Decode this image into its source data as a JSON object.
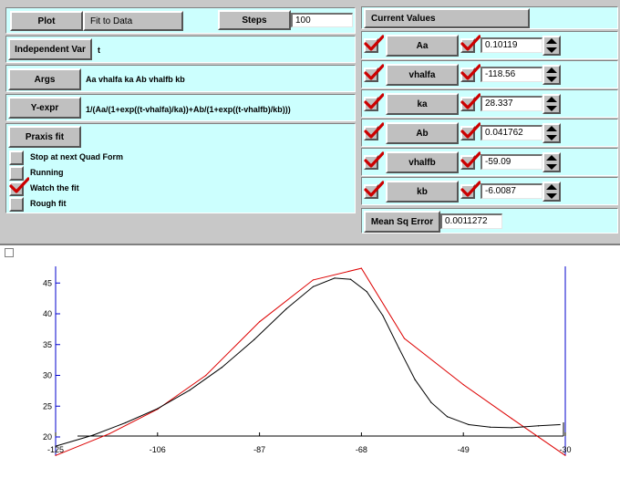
{
  "left_panel": {
    "plot_label": "Plot",
    "fit_to_data_label": "Fit to Data",
    "steps_label": "Steps",
    "steps_value": "100",
    "indep_var_label": "Independent Var",
    "indep_var_value": "t",
    "args_label": "Args",
    "args_value": "Aa vhalfa ka Ab vhalfb kb",
    "yexpr_label": "Y-expr",
    "yexpr_value": "1/(Aa/(1+exp((t-vhalfa)/ka))+Ab/(1+exp((t-vhalfb)/kb)))",
    "praxis_label": "Praxis fit",
    "options": [
      {
        "label": "Stop at next Quad Form",
        "checked": false
      },
      {
        "label": "Running",
        "checked": false
      },
      {
        "label": "Watch the fit",
        "checked": true
      },
      {
        "label": "Rough fit",
        "checked": false
      }
    ]
  },
  "right_panel": {
    "current_values_label": "Current Values",
    "params": [
      {
        "name": "Aa",
        "value": "0.10119"
      },
      {
        "name": "vhalfa",
        "value": "-118.56"
      },
      {
        "name": "ka",
        "value": "28.337"
      },
      {
        "name": "Ab",
        "value": "0.041762"
      },
      {
        "name": "vhalfb",
        "value": "-59.09"
      },
      {
        "name": "kb",
        "value": "-6.0087"
      }
    ],
    "mse_label": "Mean Sq Error",
    "mse_value": "0.0011272"
  },
  "colors": {
    "fit_curve": "#000000",
    "data_curve": "#dd0000",
    "axis": "#0000cc",
    "check": "#cc0000"
  },
  "chart_data": {
    "type": "line",
    "title": "",
    "xlabel": "",
    "ylabel": "",
    "xlim": [
      -125,
      -30
    ],
    "ylim": [
      20,
      47
    ],
    "x_ticks": [
      "-125",
      "-106",
      "-87",
      "-68",
      "-49",
      "-30"
    ],
    "y_ticks": [
      "45",
      "40",
      "35",
      "30",
      "25",
      "20"
    ],
    "series": [
      {
        "color": "#dd0000",
        "x": [
          -125,
          -115,
          -106,
          -97,
          -87,
          -77,
          -68,
          -60,
          -49,
          -40,
          -30
        ],
        "y": [
          17,
          20.5,
          24.5,
          30,
          38.7,
          45.5,
          47.4,
          36,
          28.5,
          23,
          17
        ]
      },
      {
        "color": "#000000",
        "x": [
          -125,
          -118,
          -112,
          -106,
          -100,
          -94,
          -88,
          -82,
          -77,
          -73,
          -70,
          -67,
          -64,
          -61,
          -58,
          -55,
          -52,
          -48,
          -44,
          -40,
          -35,
          -31
        ],
        "y": [
          18.5,
          20.3,
          22.3,
          24.6,
          27.6,
          31.3,
          35.8,
          40.8,
          44.4,
          45.8,
          45.6,
          43.6,
          39.7,
          34.4,
          29.3,
          25.6,
          23.3,
          22,
          21.6,
          21.5,
          21.8,
          22
        ]
      }
    ]
  }
}
